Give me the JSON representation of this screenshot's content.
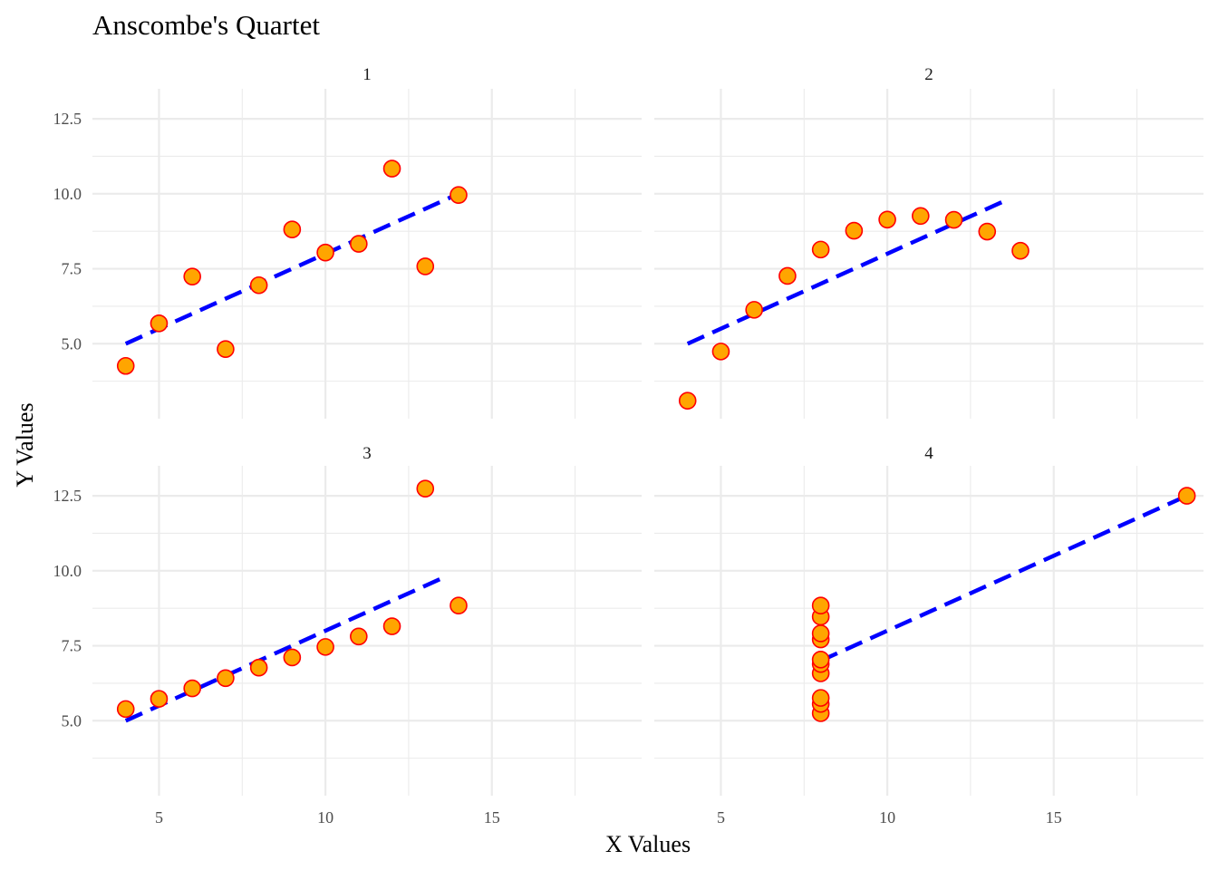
{
  "chart_data": {
    "type": "scatter",
    "title": "Anscombe's Quartet",
    "xlabel": "X Values",
    "ylabel": "Y Values",
    "xlim": [
      3,
      19.5
    ],
    "ylim": [
      2.5,
      13.5
    ],
    "x_major_ticks": [
      5,
      10,
      15
    ],
    "x_minor_ticks": [
      7.5,
      12.5,
      17.5
    ],
    "y_major_ticks": [
      5,
      7.5,
      10,
      12.5
    ],
    "y_minor_ticks": [
      3.75,
      6.25,
      8.75,
      11.25
    ],
    "x_tick_labels": [
      "5",
      "10",
      "15"
    ],
    "y_tick_labels": [
      "5.0",
      "7.5",
      "10.0",
      "12.5"
    ],
    "grid": true,
    "point_fill": "#ffa500",
    "point_stroke": "#ff0000",
    "fit_line_color": "#0000ff",
    "fit_line_style": "dashed",
    "panels": [
      {
        "label": "1",
        "x": [
          4,
          5,
          6,
          7,
          8,
          9,
          10,
          11,
          12,
          13,
          14
        ],
        "y": [
          4.26,
          5.68,
          7.24,
          4.82,
          6.95,
          8.81,
          8.04,
          8.33,
          10.84,
          7.58,
          9.96
        ],
        "fit": {
          "x": [
            4,
            14
          ],
          "y": [
            5.0,
            10.0
          ]
        }
      },
      {
        "label": "2",
        "x": [
          4,
          5,
          6,
          7,
          8,
          9,
          10,
          11,
          12,
          13,
          14
        ],
        "y": [
          3.1,
          4.74,
          6.13,
          7.26,
          8.14,
          8.77,
          9.14,
          9.26,
          9.13,
          8.74,
          8.1
        ],
        "fit": {
          "x": [
            4,
            13.6
          ],
          "y": [
            5.0,
            9.8
          ]
        }
      },
      {
        "label": "3",
        "x": [
          4,
          5,
          6,
          7,
          8,
          9,
          10,
          11,
          12,
          13,
          14
        ],
        "y": [
          5.39,
          5.73,
          6.08,
          6.42,
          6.77,
          7.11,
          7.46,
          7.81,
          8.15,
          12.74,
          8.84
        ],
        "fit": {
          "x": [
            4,
            13.6
          ],
          "y": [
            5.0,
            9.8
          ]
        }
      },
      {
        "label": "4",
        "x": [
          8,
          8,
          8,
          8,
          8,
          8,
          8,
          8,
          8,
          8,
          19
        ],
        "y": [
          5.25,
          5.56,
          5.76,
          6.58,
          6.89,
          7.04,
          7.71,
          7.91,
          8.47,
          8.84,
          12.5
        ],
        "fit": {
          "x": [
            8,
            19
          ],
          "y": [
            7.0,
            12.5
          ]
        }
      }
    ]
  }
}
